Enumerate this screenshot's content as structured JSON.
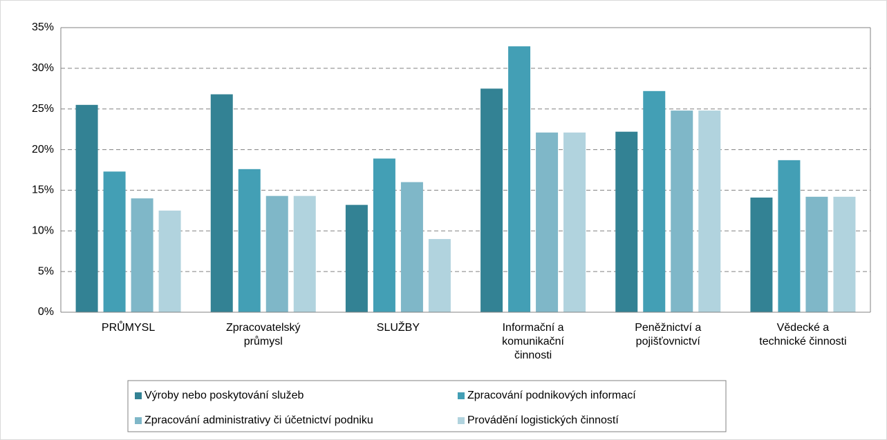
{
  "chart_data": {
    "type": "bar",
    "categories": [
      "PRŮMYSL",
      "Zpracovatelský\nprůmysl",
      "SLUŽBY",
      "Informační a\nkomunikační\nčinnosti",
      "Peněžnictví a\npojišťovnictví",
      "Vědecké a\ntechnické činnosti"
    ],
    "series": [
      {
        "name": "Výroby nebo poskytování služeb",
        "color": "#338294",
        "values": [
          25.5,
          26.8,
          13.2,
          27.5,
          22.2,
          14.1
        ]
      },
      {
        "name": "Zpracování podnikových informací",
        "color": "#439fb5",
        "values": [
          17.3,
          17.6,
          18.9,
          32.7,
          27.2,
          18.7
        ]
      },
      {
        "name": "Zpracování administrativy či účetnictví podniku",
        "color": "#7fb7c8",
        "values": [
          14.0,
          14.3,
          16.0,
          22.1,
          24.8,
          14.2
        ]
      },
      {
        "name": "Provádění logistických činností",
        "color": "#b1d3de",
        "values": [
          12.5,
          14.3,
          9.0,
          22.1,
          24.8,
          14.2
        ]
      }
    ],
    "ylim": [
      0,
      35
    ],
    "yticks": [
      {
        "value": 0,
        "label": "0%"
      },
      {
        "value": 5,
        "label": "5%"
      },
      {
        "value": 10,
        "label": "10%"
      },
      {
        "value": 15,
        "label": "15%"
      },
      {
        "value": 20,
        "label": "20%"
      },
      {
        "value": 25,
        "label": "25%"
      },
      {
        "value": 30,
        "label": "30%"
      },
      {
        "value": 35,
        "label": "35%"
      }
    ],
    "grid": true,
    "legend": "bottom"
  }
}
